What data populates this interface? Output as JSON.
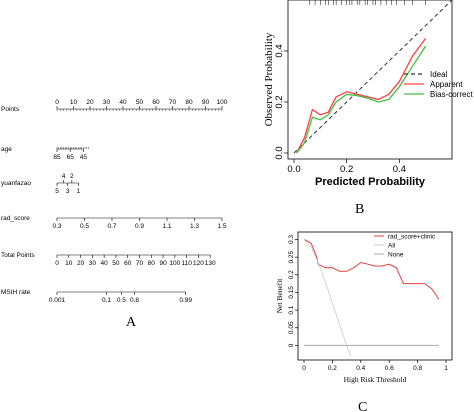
{
  "panel_labels": {
    "a": "A",
    "b": "B",
    "c": "C"
  },
  "chart_data": [
    {
      "type": "nomogram",
      "panel": "A",
      "rows": [
        {
          "label": "Points",
          "ticks": [
            0,
            10,
            20,
            30,
            40,
            50,
            60,
            70,
            80,
            90,
            100
          ],
          "tick_labels": [
            "0",
            "10",
            "20",
            "30",
            "40",
            "50",
            "60",
            "70",
            "80",
            "90",
            "100"
          ],
          "min": 0,
          "max": 100
        },
        {
          "label": "age",
          "ticks": [
            85,
            65,
            45
          ],
          "tick_labels": [
            "85",
            "65",
            "45"
          ],
          "positions": [
            0,
            8,
            16
          ],
          "minor_positions": [
            0,
            1,
            2,
            3,
            4,
            5,
            6,
            7,
            8,
            9,
            10,
            11,
            12,
            13,
            14,
            15,
            16,
            17,
            18,
            19
          ]
        },
        {
          "label": "yuanfazao",
          "upper_ticks": [
            "4",
            "2"
          ],
          "upper_positions": [
            4,
            9
          ],
          "lower_ticks": [
            "5",
            "3",
            "1"
          ],
          "lower_positions": [
            0,
            6.5,
            13
          ]
        },
        {
          "label": "rad_score",
          "ticks": [
            0.3,
            0.5,
            0.7,
            0.9,
            1.1,
            1.3,
            1.5
          ],
          "tick_labels": [
            "0.3",
            "0.5",
            "0.7",
            "0.9",
            "1.1",
            "1.3",
            "1.5"
          ],
          "positions": [
            0,
            23.5,
            47,
            70.5,
            94,
            117.5,
            141
          ],
          "scale_max": 141
        },
        {
          "label": "Total Points",
          "ticks": [
            0,
            10,
            20,
            30,
            40,
            50,
            60,
            70,
            80,
            90,
            100,
            110,
            120,
            130
          ],
          "tick_labels": [
            "0",
            "10",
            "20",
            "30",
            "40",
            "50",
            "60",
            "70",
            "80",
            "90",
            "100",
            "110",
            "120",
            "130"
          ],
          "min": 0,
          "max": 140
        },
        {
          "label": "MSIH rate",
          "ticks": [
            0.001,
            0.1,
            0.5,
            0.8,
            0.99
          ],
          "tick_labels": [
            "0.001",
            "0.1",
            "0.5",
            "0.8",
            "0.99"
          ],
          "positions": [
            0,
            30,
            39,
            47,
            78
          ],
          "scale_max": 100
        }
      ]
    },
    {
      "type": "line",
      "panel": "B",
      "xlabel": "Predicted Probability",
      "ylabel": "Observed Probability",
      "xlim": [
        0,
        0.6
      ],
      "ylim": [
        0,
        0.6
      ],
      "x_ticks": [
        0.0,
        0.2,
        0.4
      ],
      "x_tick_labels": [
        "0.0",
        "0.2",
        "0.4"
      ],
      "y_ticks": [
        0.0,
        0.2,
        0.4
      ],
      "y_tick_labels": [
        "0.0",
        "0.2",
        "0.4"
      ],
      "legend_position": "right",
      "rug_x": [
        0.06,
        0.08,
        0.1,
        0.12,
        0.13,
        0.15,
        0.16,
        0.18,
        0.2,
        0.21,
        0.22,
        0.24,
        0.25,
        0.27,
        0.28,
        0.3,
        0.31,
        0.33,
        0.35,
        0.37,
        0.39,
        0.42,
        0.45,
        0.5
      ],
      "series": [
        {
          "name": "Ideal",
          "style": "dashed",
          "color": "#333333",
          "x": [
            0,
            0.6
          ],
          "y": [
            0,
            0.6
          ]
        },
        {
          "name": "Apparent",
          "style": "solid",
          "color": "#ff4040",
          "x": [
            0.01,
            0.04,
            0.07,
            0.1,
            0.13,
            0.16,
            0.2,
            0.24,
            0.28,
            0.32,
            0.36,
            0.4,
            0.45,
            0.5
          ],
          "y": [
            0.0,
            0.06,
            0.17,
            0.15,
            0.16,
            0.22,
            0.24,
            0.23,
            0.22,
            0.21,
            0.23,
            0.28,
            0.38,
            0.45
          ]
        },
        {
          "name": "Bias-correct",
          "style": "solid",
          "color": "#40c040",
          "x": [
            0.01,
            0.04,
            0.07,
            0.1,
            0.13,
            0.16,
            0.2,
            0.24,
            0.28,
            0.32,
            0.36,
            0.4,
            0.45,
            0.5
          ],
          "y": [
            0.0,
            0.04,
            0.14,
            0.13,
            0.15,
            0.2,
            0.23,
            0.225,
            0.215,
            0.2,
            0.21,
            0.26,
            0.34,
            0.42
          ]
        }
      ]
    },
    {
      "type": "line",
      "panel": "C",
      "xlabel": "High Risk Threshold",
      "ylabel": "Net Benefit",
      "xlim": [
        0,
        1
      ],
      "ylim": [
        -0.03,
        0.31
      ],
      "x_ticks": [
        0,
        0.2,
        0.4,
        0.6,
        0.8,
        1
      ],
      "x_tick_labels": [
        "0",
        "0.2",
        "0.4",
        "0.6",
        "0.8",
        "1"
      ],
      "y_ticks": [
        0,
        0.05,
        0.1,
        0.15,
        0.2,
        0.25,
        0.3
      ],
      "y_tick_labels": [
        "0",
        "0.05",
        "0.1",
        "0.15",
        "0.2",
        "0.25",
        "0.3"
      ],
      "legend_position": "top-right",
      "series": [
        {
          "name": "rad_score+clinic",
          "color": "#e04040",
          "x": [
            0,
            0.05,
            0.09,
            0.1,
            0.15,
            0.2,
            0.25,
            0.3,
            0.35,
            0.4,
            0.45,
            0.5,
            0.55,
            0.6,
            0.65,
            0.7,
            0.75,
            0.8,
            0.85,
            0.9,
            0.95
          ],
          "y": [
            0.3,
            0.29,
            0.25,
            0.23,
            0.22,
            0.22,
            0.21,
            0.21,
            0.22,
            0.235,
            0.23,
            0.225,
            0.225,
            0.23,
            0.22,
            0.175,
            0.175,
            0.175,
            0.175,
            0.16,
            0.13
          ]
        },
        {
          "name": "All",
          "color": "#c8c8c8",
          "x": [
            0,
            0.05,
            0.1,
            0.15,
            0.2,
            0.25,
            0.3,
            0.33
          ],
          "y": [
            0.3,
            0.28,
            0.235,
            0.18,
            0.12,
            0.06,
            0.0,
            -0.03
          ]
        },
        {
          "name": "None",
          "color": "#aaaaaa",
          "x": [
            0,
            0.95
          ],
          "y": [
            0,
            0
          ]
        }
      ]
    }
  ]
}
